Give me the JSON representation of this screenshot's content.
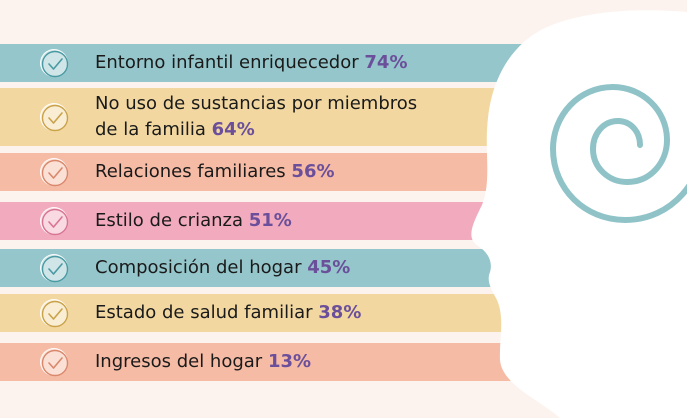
{
  "chart_data": {
    "type": "bar",
    "categories": [
      [
        "Entorno infantil enriquecedor"
      ],
      [
        "No uso de sustancias por miembros",
        "de la familia"
      ],
      [
        "Relaciones familiares"
      ],
      [
        "Estilo de crianza"
      ],
      [
        "Composición del hogar"
      ],
      [
        "Estado de salud familiar"
      ],
      [
        "Ingresos del hogar"
      ]
    ],
    "values": [
      74,
      64,
      56,
      51,
      45,
      38,
      13
    ],
    "value_labels": [
      "74%",
      "64%",
      "56%",
      "51%",
      "45%",
      "38%",
      "13%"
    ],
    "colors": [
      "#95c6cb",
      "#f2d8a0",
      "#f5bba5",
      "#f2abbe",
      "#95c6cb",
      "#f2d8a0",
      "#f5bba5"
    ],
    "check_stroke": [
      "#4a9aa3",
      "#c9a24a",
      "#d9886c",
      "#d87494",
      "#4a9aa3",
      "#c9a24a",
      "#d9886c"
    ]
  },
  "icons": {
    "row_icon": "check-circle-icon",
    "decoration": "head-silhouette-spiral-icon"
  },
  "colors": {
    "background": "#fcf3ef",
    "percent_text": "#6b4f9a",
    "spiral": "#8fc3c8",
    "head": "#ffffff"
  }
}
